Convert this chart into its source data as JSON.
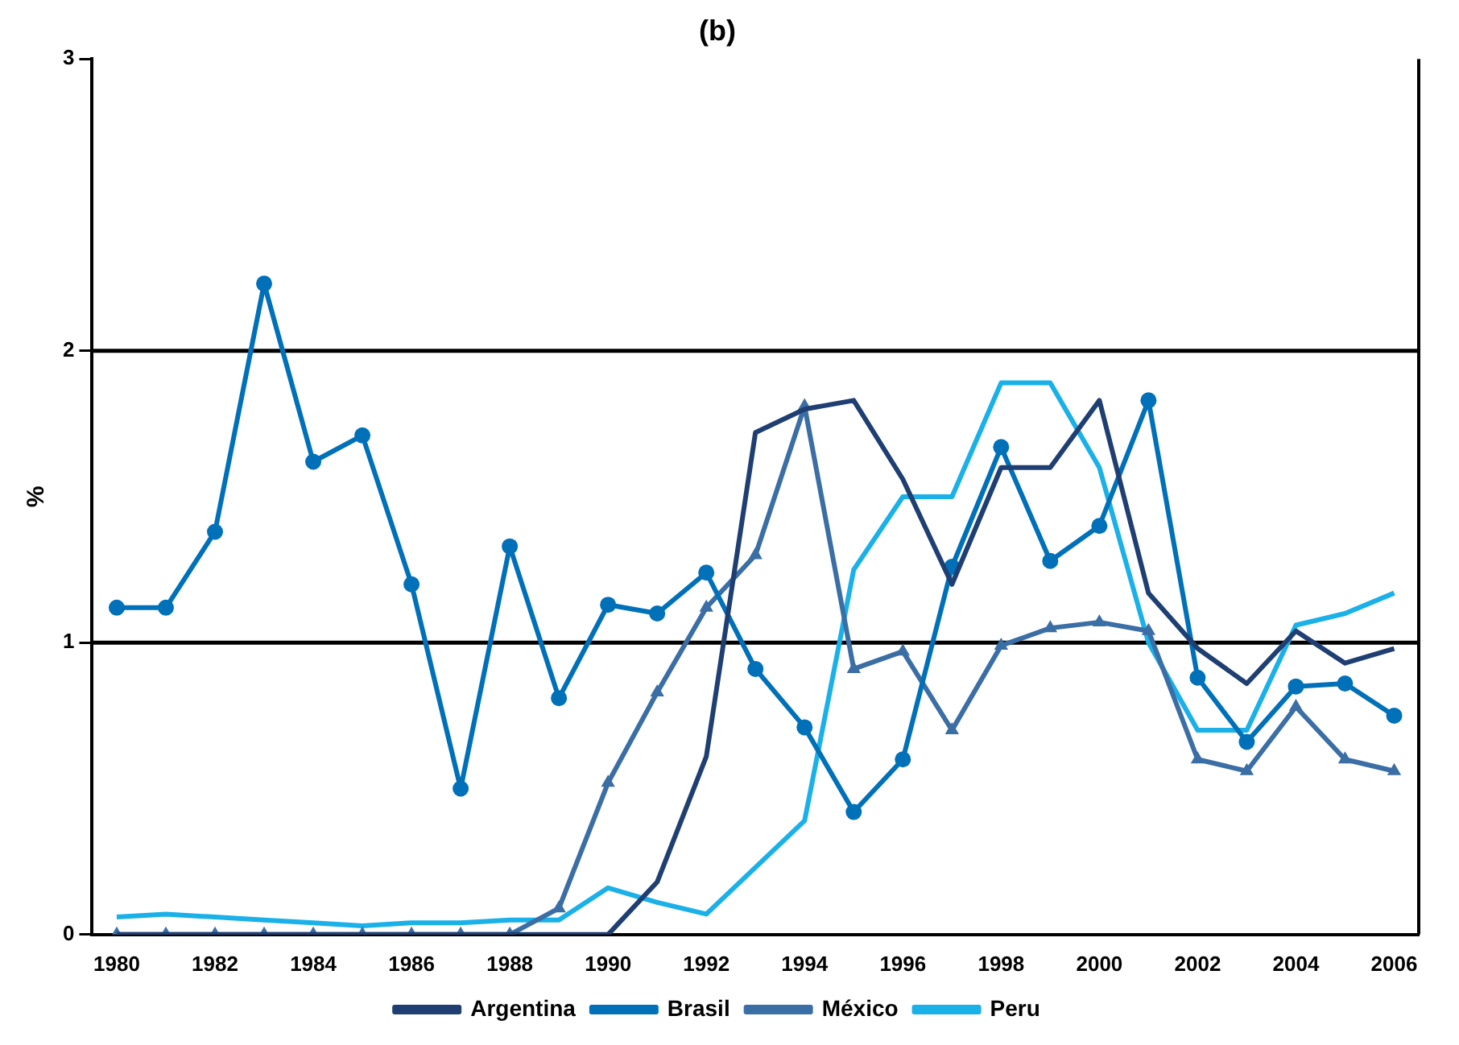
{
  "chart_data": {
    "type": "line",
    "title": "(b)",
    "ylabel": "%",
    "categories": [
      "1980",
      null,
      "1982",
      null,
      "1984",
      null,
      "1986",
      null,
      "1988",
      null,
      "1990",
      null,
      "1992",
      null,
      "1994",
      null,
      "1996",
      null,
      "1998",
      null,
      "2000",
      null,
      "2002",
      null,
      "2004",
      null,
      "2006"
    ],
    "series": [
      {
        "name": "Argentina",
        "color": "#1f3f73",
        "marker": "none",
        "values": [
          0,
          0,
          0,
          0,
          0,
          0,
          0,
          0,
          0,
          0,
          0,
          0.18,
          0.61,
          1.72,
          1.8,
          1.83,
          1.56,
          1.2,
          1.6,
          1.6,
          1.83,
          1.17,
          0.98,
          0.86,
          1.04,
          0.93,
          0.98
        ]
      },
      {
        "name": "Brasil",
        "color": "#0070b8",
        "marker": "circle",
        "values": [
          1.12,
          1.12,
          1.38,
          2.23,
          1.62,
          1.71,
          1.2,
          0.5,
          1.33,
          0.81,
          1.13,
          1.1,
          1.24,
          0.91,
          0.71,
          0.42,
          0.6,
          1.26,
          1.67,
          1.28,
          1.4,
          1.83,
          0.88,
          0.66,
          0.85,
          0.86,
          0.75
        ]
      },
      {
        "name": "México",
        "color": "#3a6ea5",
        "marker": "triangle",
        "values": [
          0,
          0,
          0,
          0,
          0,
          0,
          0,
          0,
          0,
          0.09,
          0.52,
          0.83,
          1.12,
          1.3,
          1.81,
          0.91,
          0.97,
          0.7,
          0.99,
          1.05,
          1.07,
          1.04,
          0.6,
          0.56,
          0.78,
          0.6,
          0.56
        ]
      },
      {
        "name": "Peru",
        "color": "#1ab0e8",
        "marker": "none",
        "values": [
          0.06,
          0.07,
          0.06,
          0.05,
          0.04,
          0.03,
          0.04,
          0.04,
          0.05,
          0.05,
          0.16,
          0.11,
          0.07,
          0.23,
          0.39,
          1.25,
          1.5,
          1.5,
          1.89,
          1.89,
          1.6,
          1.0,
          0.7,
          0.7,
          1.06,
          1.1,
          1.17
        ]
      }
    ],
    "ref_lines": [
      {
        "axis": "y",
        "value": 1,
        "color": "#000000"
      },
      {
        "axis": "y",
        "value": 2,
        "color": "#000000"
      }
    ],
    "ylim": [
      0,
      3
    ],
    "yticks": [
      0,
      1,
      2,
      3
    ],
    "legend": "bottom",
    "line_style": "solid"
  }
}
